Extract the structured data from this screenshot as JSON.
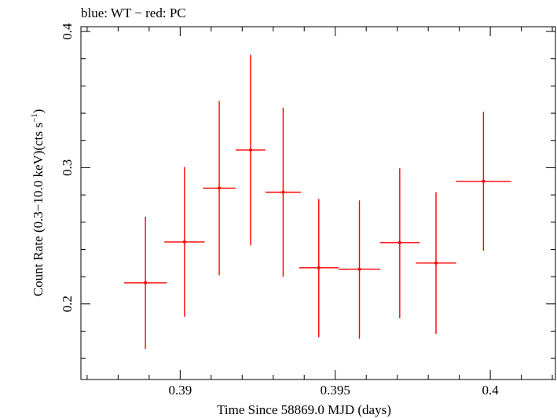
{
  "chart_data": {
    "type": "scatter",
    "title": "blue: WT − red: PC",
    "xlabel": "Time Since 58869.0 MJD (days)",
    "ylabel_main": "Count Rate (0.3−10.0 keV)(cts s",
    "ylabel_sup": "−1",
    "ylabel_close": ")",
    "xlim": [
      0.3868,
      0.4021
    ],
    "ylim": [
      0.1445,
      0.4035
    ],
    "xticks": [
      0.39,
      0.395,
      0.4
    ],
    "xtick_labels": [
      "0.39",
      "0.395",
      "0.4"
    ],
    "yticks": [
      0.2,
      0.3,
      0.4
    ],
    "ytick_labels": [
      "0.2",
      "0.3",
      "0.4"
    ],
    "grid": false,
    "series": [
      {
        "color": "#ff0000",
        "points": [
          {
            "x": 0.38888,
            "y": 0.2155,
            "xerr": 0.00069,
            "yerr_lo": 0.0485,
            "yerr_hi": 0.0485
          },
          {
            "x": 0.39014,
            "y": 0.2455,
            "xerr": 0.00065,
            "yerr_lo": 0.055,
            "yerr_hi": 0.055
          },
          {
            "x": 0.39126,
            "y": 0.285,
            "xerr": 0.00053,
            "yerr_lo": 0.064,
            "yerr_hi": 0.064
          },
          {
            "x": 0.39227,
            "y": 0.313,
            "xerr": 0.00048,
            "yerr_lo": 0.07,
            "yerr_hi": 0.07
          },
          {
            "x": 0.39332,
            "y": 0.282,
            "xerr": 0.00057,
            "yerr_lo": 0.062,
            "yerr_hi": 0.062
          },
          {
            "x": 0.39447,
            "y": 0.2265,
            "xerr": 0.00064,
            "yerr_lo": 0.051,
            "yerr_hi": 0.0505
          },
          {
            "x": 0.39578,
            "y": 0.2255,
            "xerr": 0.00067,
            "yerr_lo": 0.051,
            "yerr_hi": 0.0505
          },
          {
            "x": 0.39708,
            "y": 0.245,
            "xerr": 0.00064,
            "yerr_lo": 0.0555,
            "yerr_hi": 0.0545
          },
          {
            "x": 0.39825,
            "y": 0.23,
            "xerr": 0.00065,
            "yerr_lo": 0.052,
            "yerr_hi": 0.052
          },
          {
            "x": 0.39978,
            "y": 0.29,
            "xerr": 0.00089,
            "yerr_lo": 0.051,
            "yerr_hi": 0.051
          }
        ]
      }
    ]
  }
}
